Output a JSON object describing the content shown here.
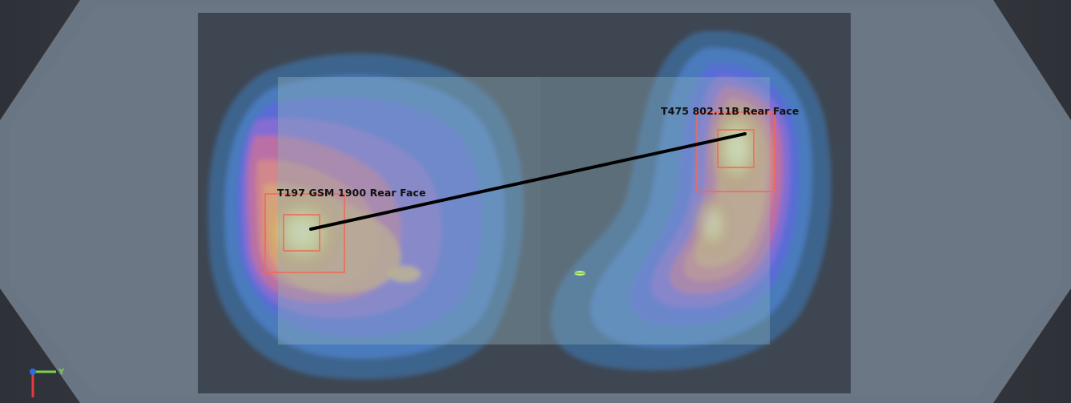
{
  "viewport": {
    "background_color": "#3b3f46",
    "phantom_color": "#6a7583",
    "device_color": "#3e4652",
    "screen_color": "#7f99a8"
  },
  "measurements": [
    {
      "label": "T197 GSM 1900 Rear Face",
      "marker_color": "#f06a5a"
    },
    {
      "label": "T475 802.11B Rear Face",
      "marker_color": "#f06a5a"
    }
  ],
  "axis_triad": {
    "y_axis_label": "Y",
    "x_color": "#e33b3b",
    "y_color": "#7fd14a",
    "z_color": "#2e6de0"
  }
}
